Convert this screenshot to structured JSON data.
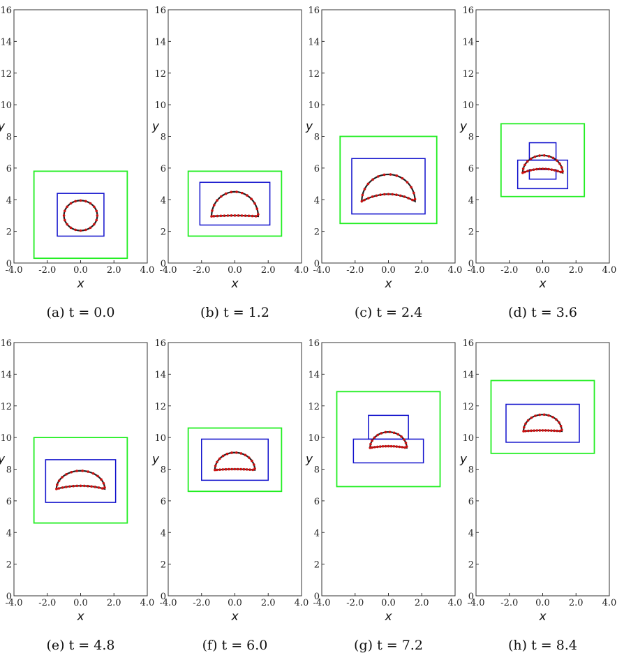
{
  "chart_data": [
    {
      "type": "line",
      "caption": "(a) t = 0.0",
      "xlabel": "x",
      "ylabel": "y",
      "xlim": [
        -4.0,
        4.0
      ],
      "ylim": [
        0,
        16
      ],
      "xticks": [
        "-4.0",
        "-2.0",
        "0.0",
        "2.0",
        "4.0"
      ],
      "yticks": [
        "0",
        "2",
        "4",
        "6",
        "8",
        "10",
        "12",
        "14",
        "16"
      ],
      "shape": "circle",
      "shape_center": [
        0.0,
        3.0
      ],
      "shape_size": [
        2.0,
        1.9
      ],
      "green_boxes": [
        [
          -2.8,
          0.3,
          2.8,
          5.8
        ]
      ],
      "blue_boxes": [
        [
          -1.4,
          1.7,
          1.4,
          4.4
        ]
      ],
      "colors": {
        "green": "#22ee22",
        "blue": "#1111cc",
        "interface": "#222222",
        "markers": "#cc1111"
      }
    },
    {
      "type": "line",
      "caption": "(b) t = 1.2",
      "xlabel": "x",
      "ylabel": "y",
      "xlim": [
        -4.0,
        4.0
      ],
      "ylim": [
        0,
        16
      ],
      "xticks": [
        "-4.0",
        "-2.0",
        "0.0",
        "2.0",
        "4.0"
      ],
      "yticks": [
        "0",
        "2",
        "4",
        "6",
        "8",
        "10",
        "12",
        "14",
        "16"
      ],
      "shape": "cap",
      "shape_center": [
        0.0,
        2.95
      ],
      "shape_size": [
        2.8,
        1.55
      ],
      "shape_dip": 0.05,
      "green_boxes": [
        [
          -2.8,
          1.7,
          2.8,
          5.8
        ]
      ],
      "blue_boxes": [
        [
          -2.1,
          2.4,
          2.1,
          5.1
        ]
      ],
      "colors": {
        "green": "#22ee22",
        "blue": "#1111cc",
        "interface": "#222222",
        "markers": "#cc1111"
      }
    },
    {
      "type": "line",
      "caption": "(c) t = 2.4",
      "xlabel": "x",
      "ylabel": "y",
      "xlim": [
        -4.0,
        4.0
      ],
      "ylim": [
        0,
        16
      ],
      "xticks": [
        "-4.0",
        "-2.0",
        "0.0",
        "2.0",
        "4.0"
      ],
      "yticks": [
        "0",
        "2",
        "4",
        "6",
        "8",
        "10",
        "12",
        "14",
        "16"
      ],
      "shape": "cap",
      "shape_center": [
        0.0,
        3.9
      ],
      "shape_size": [
        3.2,
        1.7
      ],
      "shape_dip": 0.45,
      "green_boxes": [
        [
          -2.9,
          2.5,
          2.9,
          8.0
        ]
      ],
      "blue_boxes": [
        [
          -2.2,
          3.1,
          2.2,
          6.6
        ]
      ],
      "colors": {
        "green": "#22ee22",
        "blue": "#1111cc",
        "interface": "#222222",
        "markers": "#cc1111"
      }
    },
    {
      "type": "line",
      "caption": "(d) t = 3.6",
      "xlabel": "x",
      "ylabel": "y",
      "xlim": [
        -4.0,
        4.0
      ],
      "ylim": [
        0,
        16
      ],
      "xticks": [
        "-4.0",
        "-2.0",
        "0.0",
        "2.0",
        "4.0"
      ],
      "yticks": [
        "0",
        "2",
        "4",
        "6",
        "8",
        "10",
        "12",
        "14",
        "16"
      ],
      "shape": "cap",
      "shape_center": [
        0.0,
        5.7
      ],
      "shape_size": [
        2.4,
        1.1
      ],
      "shape_dip": 0.25,
      "green_boxes": [
        [
          -2.5,
          4.2,
          2.5,
          8.8
        ]
      ],
      "blue_boxes": [
        [
          -1.5,
          4.7,
          1.5,
          6.5
        ],
        [
          -0.8,
          6.5,
          0.8,
          7.6
        ],
        [
          -0.8,
          5.3,
          0.8,
          5.9
        ]
      ],
      "colors": {
        "green": "#22ee22",
        "blue": "#1111cc",
        "interface": "#222222",
        "markers": "#cc1111"
      }
    },
    {
      "type": "line",
      "caption": "(e) t = 4.8",
      "xlabel": "x",
      "ylabel": "y",
      "xlim": [
        -4.0,
        4.0
      ],
      "ylim": [
        0,
        16
      ],
      "xticks": [
        "-4.0",
        "-2.0",
        "0.0",
        "2.0",
        "4.0"
      ],
      "yticks": [
        "0",
        "2",
        "4",
        "6",
        "8",
        "10",
        "12",
        "14",
        "16"
      ],
      "shape": "cap",
      "shape_center": [
        0.0,
        6.75
      ],
      "shape_size": [
        2.9,
        1.15
      ],
      "shape_dip": 0.2,
      "green_boxes": [
        [
          -2.8,
          4.6,
          2.8,
          10.0
        ]
      ],
      "blue_boxes": [
        [
          -2.1,
          5.9,
          2.1,
          8.6
        ]
      ],
      "colors": {
        "green": "#22ee22",
        "blue": "#1111cc",
        "interface": "#222222",
        "markers": "#cc1111"
      }
    },
    {
      "type": "line",
      "caption": "(f) t = 6.0",
      "xlabel": "x",
      "ylabel": "y",
      "xlim": [
        -4.0,
        4.0
      ],
      "ylim": [
        0,
        16
      ],
      "xticks": [
        "-4.0",
        "-2.0",
        "0.0",
        "2.0",
        "4.0"
      ],
      "yticks": [
        "0",
        "2",
        "4",
        "6",
        "8",
        "10",
        "12",
        "14",
        "16"
      ],
      "shape": "cap",
      "shape_center": [
        0.0,
        7.95
      ],
      "shape_size": [
        2.4,
        1.1
      ],
      "shape_dip": 0.05,
      "green_boxes": [
        [
          -2.8,
          6.6,
          2.8,
          10.6
        ]
      ],
      "blue_boxes": [
        [
          -2.0,
          7.3,
          2.0,
          9.9
        ]
      ],
      "colors": {
        "green": "#22ee22",
        "blue": "#1111cc",
        "interface": "#222222",
        "markers": "#cc1111"
      }
    },
    {
      "type": "line",
      "caption": "(g) t = 7.2",
      "xlabel": "x",
      "ylabel": "y",
      "xlim": [
        -4.0,
        4.0
      ],
      "ylim": [
        0,
        16
      ],
      "xticks": [
        "-4.0",
        "-2.0",
        "0.0",
        "2.0",
        "4.0"
      ],
      "yticks": [
        "0",
        "2",
        "4",
        "6",
        "8",
        "10",
        "12",
        "14",
        "16"
      ],
      "shape": "cap",
      "shape_center": [
        0.0,
        9.35
      ],
      "shape_size": [
        2.2,
        1.0
      ],
      "shape_dip": 0.1,
      "green_boxes": [
        [
          -3.1,
          6.9,
          3.1,
          12.9
        ]
      ],
      "blue_boxes": [
        [
          -2.1,
          8.4,
          2.1,
          9.9
        ],
        [
          -1.2,
          9.9,
          1.2,
          11.4
        ]
      ],
      "colors": {
        "green": "#22ee22",
        "blue": "#1111cc",
        "interface": "#222222",
        "markers": "#cc1111"
      }
    },
    {
      "type": "line",
      "caption": "(h) t = 8.4",
      "xlabel": "x",
      "ylabel": "y",
      "xlim": [
        -4.0,
        4.0
      ],
      "ylim": [
        0,
        16
      ],
      "xticks": [
        "-4.0",
        "-2.0",
        "0.0",
        "2.0",
        "4.0"
      ],
      "yticks": [
        "0",
        "2",
        "4",
        "6",
        "8",
        "10",
        "12",
        "14",
        "16"
      ],
      "shape": "cap",
      "shape_center": [
        0.0,
        10.4
      ],
      "shape_size": [
        2.3,
        1.05
      ],
      "shape_dip": 0.05,
      "green_boxes": [
        [
          -3.1,
          9.0,
          3.1,
          13.6
        ]
      ],
      "blue_boxes": [
        [
          -2.2,
          9.7,
          2.2,
          12.1
        ]
      ],
      "colors": {
        "green": "#22ee22",
        "blue": "#1111cc",
        "interface": "#222222",
        "markers": "#cc1111"
      }
    }
  ]
}
